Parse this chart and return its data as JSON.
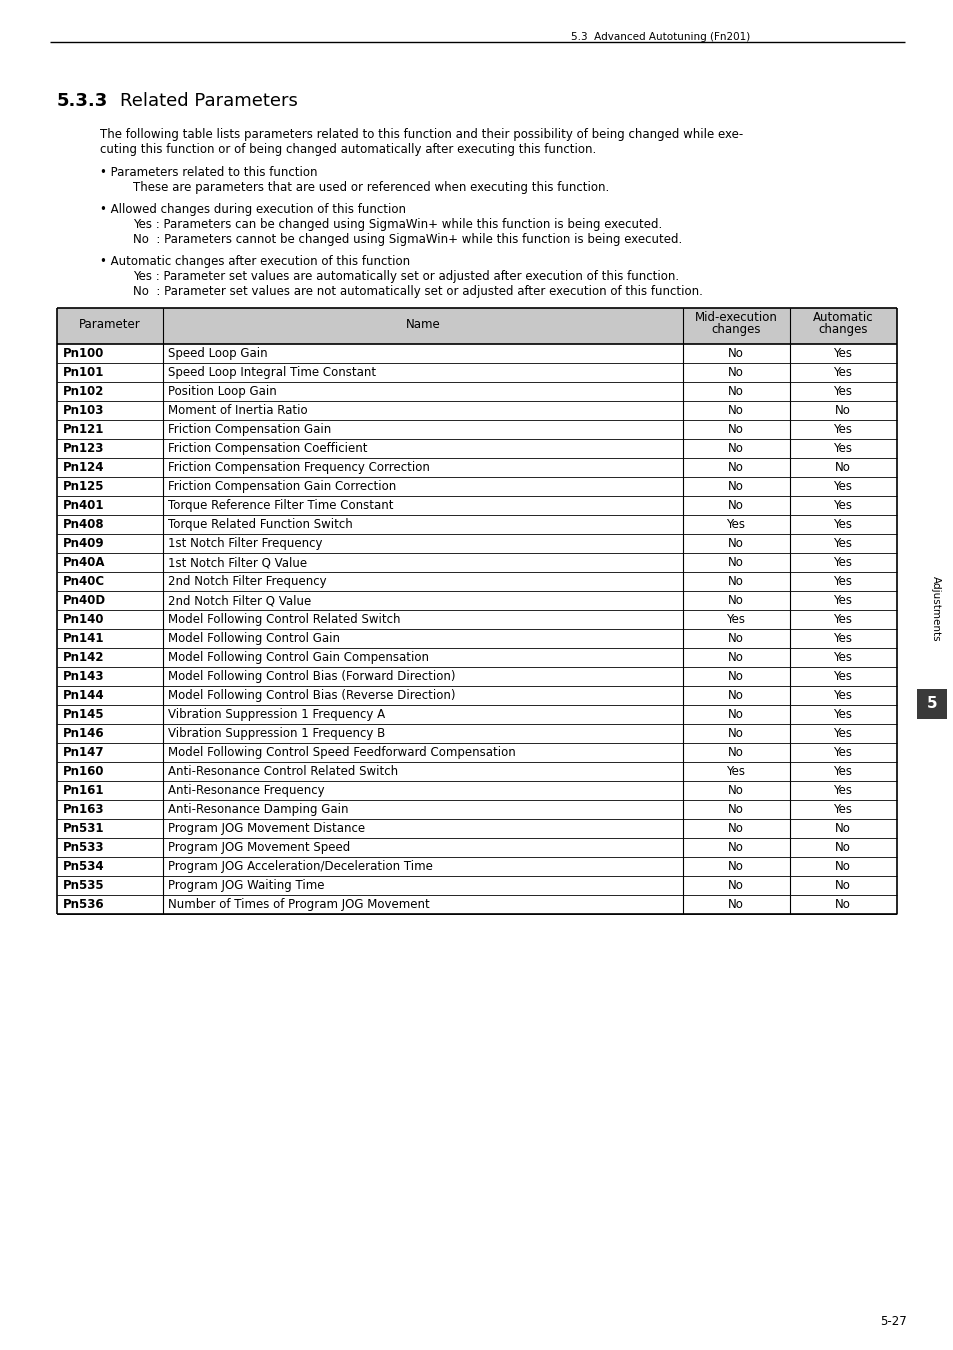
{
  "header_line": "5.3  Advanced Autotuning (Fn201)",
  "section_num": "5.3.3",
  "section_title": "Related Parameters",
  "intro_line1": "The following table lists parameters related to this function and their possibility of being changed while exe-",
  "intro_line2": "cuting this function or of being changed automatically after executing this function.",
  "bullet1_title": "• Parameters related to this function",
  "bullet1_body": "These are parameters that are used or referenced when executing this function.",
  "bullet2_title": "• Allowed changes during execution of this function",
  "bullet2_body1": "Yes : Parameters can be changed using SigmaWin+ while this function is being executed.",
  "bullet2_body2": "No  : Parameters cannot be changed using SigmaWin+ while this function is being executed.",
  "bullet3_title": "• Automatic changes after execution of this function",
  "bullet3_body1": "Yes : Parameter set values are automatically set or adjusted after execution of this function.",
  "bullet3_body2": "No  : Parameter set values are not automatically set or adjusted after execution of this function.",
  "table_col_headers": [
    "Parameter",
    "Name",
    "Mid-execution\nchanges",
    "Automatic\nchanges"
  ],
  "table_rows": [
    [
      "Pn100",
      "Speed Loop Gain",
      "No",
      "Yes"
    ],
    [
      "Pn101",
      "Speed Loop Integral Time Constant",
      "No",
      "Yes"
    ],
    [
      "Pn102",
      "Position Loop Gain",
      "No",
      "Yes"
    ],
    [
      "Pn103",
      "Moment of Inertia Ratio",
      "No",
      "No"
    ],
    [
      "Pn121",
      "Friction Compensation Gain",
      "No",
      "Yes"
    ],
    [
      "Pn123",
      "Friction Compensation Coefficient",
      "No",
      "Yes"
    ],
    [
      "Pn124",
      "Friction Compensation Frequency Correction",
      "No",
      "No"
    ],
    [
      "Pn125",
      "Friction Compensation Gain Correction",
      "No",
      "Yes"
    ],
    [
      "Pn401",
      "Torque Reference Filter Time Constant",
      "No",
      "Yes"
    ],
    [
      "Pn408",
      "Torque Related Function Switch",
      "Yes",
      "Yes"
    ],
    [
      "Pn409",
      "1st Notch Filter Frequency",
      "No",
      "Yes"
    ],
    [
      "Pn40A",
      "1st Notch Filter Q Value",
      "No",
      "Yes"
    ],
    [
      "Pn40C",
      "2nd Notch Filter Frequency",
      "No",
      "Yes"
    ],
    [
      "Pn40D",
      "2nd Notch Filter Q Value",
      "No",
      "Yes"
    ],
    [
      "Pn140",
      "Model Following Control Related Switch",
      "Yes",
      "Yes"
    ],
    [
      "Pn141",
      "Model Following Control Gain",
      "No",
      "Yes"
    ],
    [
      "Pn142",
      "Model Following Control Gain Compensation",
      "No",
      "Yes"
    ],
    [
      "Pn143",
      "Model Following Control Bias (Forward Direction)",
      "No",
      "Yes"
    ],
    [
      "Pn144",
      "Model Following Control Bias (Reverse Direction)",
      "No",
      "Yes"
    ],
    [
      "Pn145",
      "Vibration Suppression 1 Frequency A",
      "No",
      "Yes"
    ],
    [
      "Pn146",
      "Vibration Suppression 1 Frequency B",
      "No",
      "Yes"
    ],
    [
      "Pn147",
      "Model Following Control Speed Feedforward Compensation",
      "No",
      "Yes"
    ],
    [
      "Pn160",
      "Anti-Resonance Control Related Switch",
      "Yes",
      "Yes"
    ],
    [
      "Pn161",
      "Anti-Resonance Frequency",
      "No",
      "Yes"
    ],
    [
      "Pn163",
      "Anti-Resonance Damping Gain",
      "No",
      "Yes"
    ],
    [
      "Pn531",
      "Program JOG Movement Distance",
      "No",
      "No"
    ],
    [
      "Pn533",
      "Program JOG Movement Speed",
      "No",
      "No"
    ],
    [
      "Pn534",
      "Program JOG Acceleration/Deceleration Time",
      "No",
      "No"
    ],
    [
      "Pn535",
      "Program JOG Waiting Time",
      "No",
      "No"
    ],
    [
      "Pn536",
      "Number of Times of Program JOG Movement",
      "No",
      "No"
    ]
  ],
  "sidebar_text": "Adjustments",
  "sidebar_num": "5",
  "page_num": "5-27",
  "bg_color": "#ffffff",
  "header_bg": "#c8c8c8",
  "border_color": "#000000"
}
